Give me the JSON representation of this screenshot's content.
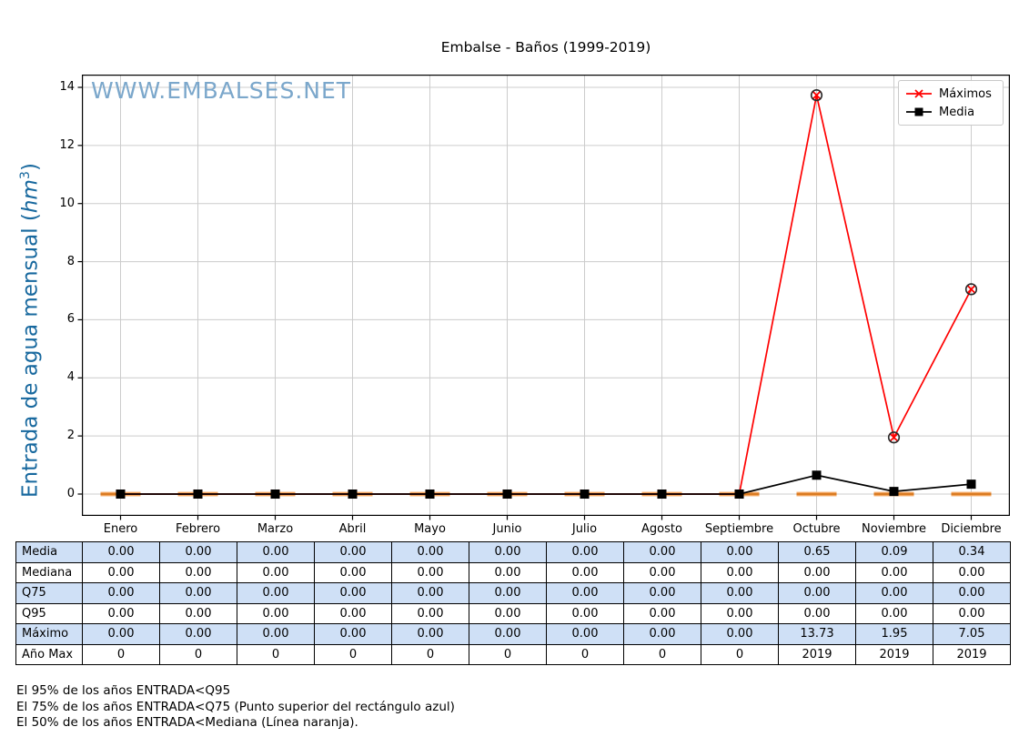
{
  "title": "Embalse - Baños (1999-2019)",
  "watermark": "WWW.EMBALSES.NET",
  "y_axis_label": {
    "prefix": "Entrada de agua mensual (",
    "unit": "hm",
    "exp": "3",
    "suffix": ")"
  },
  "colors": {
    "maximos_red": "#ff0000",
    "media_black": "#000000",
    "mediana_orange": "#f2a45c",
    "mediana_orange_core": "#d97b22",
    "marker_ring": "#2b2b2b",
    "watermark_blue": "#7ba7cb",
    "ylabel_blue": "#17689e",
    "table_highlight": "#cfe0f6",
    "grid_gray": "#cccccc"
  },
  "chart_data": {
    "type": "line",
    "categories": [
      "Enero",
      "Febrero",
      "Marzo",
      "Abril",
      "Mayo",
      "Junio",
      "Julio",
      "Agosto",
      "Septiembre",
      "Octubre",
      "Noviembre",
      "Diciembre"
    ],
    "series": [
      {
        "name": "Máximos",
        "marker": "x",
        "color": "#ff0000",
        "values": [
          0.0,
          0.0,
          0.0,
          0.0,
          0.0,
          0.0,
          0.0,
          0.0,
          0.0,
          13.73,
          1.95,
          7.05
        ]
      },
      {
        "name": "Media",
        "marker": "square",
        "color": "#000000",
        "values": [
          0.0,
          0.0,
          0.0,
          0.0,
          0.0,
          0.0,
          0.0,
          0.0,
          0.0,
          0.65,
          0.09,
          0.34
        ]
      },
      {
        "name": "Mediana",
        "marker": "hline",
        "color": "#f2a45c",
        "values": [
          0.0,
          0.0,
          0.0,
          0.0,
          0.0,
          0.0,
          0.0,
          0.0,
          0.0,
          0.0,
          0.0,
          0.0
        ]
      }
    ],
    "ylabel": "Entrada de agua mensual (hm3)",
    "xlabel": "",
    "ylim": [
      0,
      14
    ],
    "yticks": [
      0,
      2,
      4,
      6,
      8,
      10,
      12,
      14
    ],
    "grid": true,
    "legend": {
      "position": "top-right",
      "entries": [
        "Máximos",
        "Media"
      ]
    }
  },
  "table": {
    "rows": [
      {
        "label": "Media",
        "highlight": true,
        "values": [
          "0.00",
          "0.00",
          "0.00",
          "0.00",
          "0.00",
          "0.00",
          "0.00",
          "0.00",
          "0.00",
          "0.65",
          "0.09",
          "0.34"
        ]
      },
      {
        "label": "Mediana",
        "highlight": false,
        "values": [
          "0.00",
          "0.00",
          "0.00",
          "0.00",
          "0.00",
          "0.00",
          "0.00",
          "0.00",
          "0.00",
          "0.00",
          "0.00",
          "0.00"
        ]
      },
      {
        "label": "Q75",
        "highlight": true,
        "values": [
          "0.00",
          "0.00",
          "0.00",
          "0.00",
          "0.00",
          "0.00",
          "0.00",
          "0.00",
          "0.00",
          "0.00",
          "0.00",
          "0.00"
        ]
      },
      {
        "label": "Q95",
        "highlight": false,
        "values": [
          "0.00",
          "0.00",
          "0.00",
          "0.00",
          "0.00",
          "0.00",
          "0.00",
          "0.00",
          "0.00",
          "0.00",
          "0.00",
          "0.00"
        ]
      },
      {
        "label": "Máximo",
        "highlight": true,
        "values": [
          "0.00",
          "0.00",
          "0.00",
          "0.00",
          "0.00",
          "0.00",
          "0.00",
          "0.00",
          "0.00",
          "13.73",
          "1.95",
          "7.05"
        ]
      },
      {
        "label": "Año Max",
        "highlight": false,
        "values": [
          "0",
          "0",
          "0",
          "0",
          "0",
          "0",
          "0",
          "0",
          "0",
          "2019",
          "2019",
          "2019"
        ]
      }
    ]
  },
  "footnotes": [
    "El 95% de los años ENTRADA<Q95",
    "El 75% de los años ENTRADA<Q75 (Punto superior del rectángulo azul)",
    "El 50% de los años ENTRADA<Mediana (Línea naranja)."
  ]
}
